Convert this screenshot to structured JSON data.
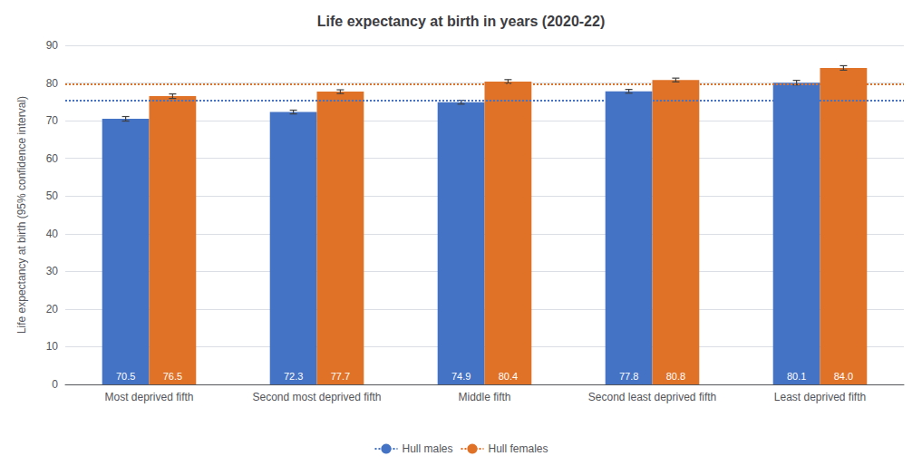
{
  "chart_data": {
    "type": "bar",
    "title": "Life expectancy at birth in years (2020-22)",
    "ylabel": "Life expectancy at birth (95% confidence interval)",
    "categories": [
      "Most deprived fifth",
      "Second most deprived fifth",
      "Middle fifth",
      "Second least deprived fifth",
      "Least deprived fifth"
    ],
    "series": [
      {
        "color": "#4472C4",
        "values": [
          70.5,
          72.3,
          74.9,
          77.8,
          80.1
        ],
        "value_labels": [
          "70.5",
          "72.3",
          "74.9",
          "77.8",
          "80.1"
        ],
        "errors": [
          0.6,
          0.5,
          0.5,
          0.5,
          0.6
        ]
      },
      {
        "color": "#E07228",
        "values": [
          76.5,
          77.7,
          80.4,
          80.8,
          84.0
        ],
        "value_labels": [
          "76.5",
          "77.7",
          "80.4",
          "80.8",
          "84.0"
        ],
        "errors": [
          0.6,
          0.5,
          0.5,
          0.5,
          0.6
        ]
      }
    ],
    "hlines": [
      {
        "name": "Hull males",
        "value": 75.3,
        "color": "#4472C4",
        "line_style": "dotted"
      },
      {
        "name": "Hull females",
        "value": 79.8,
        "color": "#E07228",
        "line_style": "dotted"
      }
    ],
    "ylim": [
      0,
      90
    ],
    "yticks": [
      0,
      10,
      20,
      30,
      40,
      50,
      60,
      70,
      80,
      90
    ],
    "grid": true,
    "legend": "bottom",
    "data_labels": true
  }
}
